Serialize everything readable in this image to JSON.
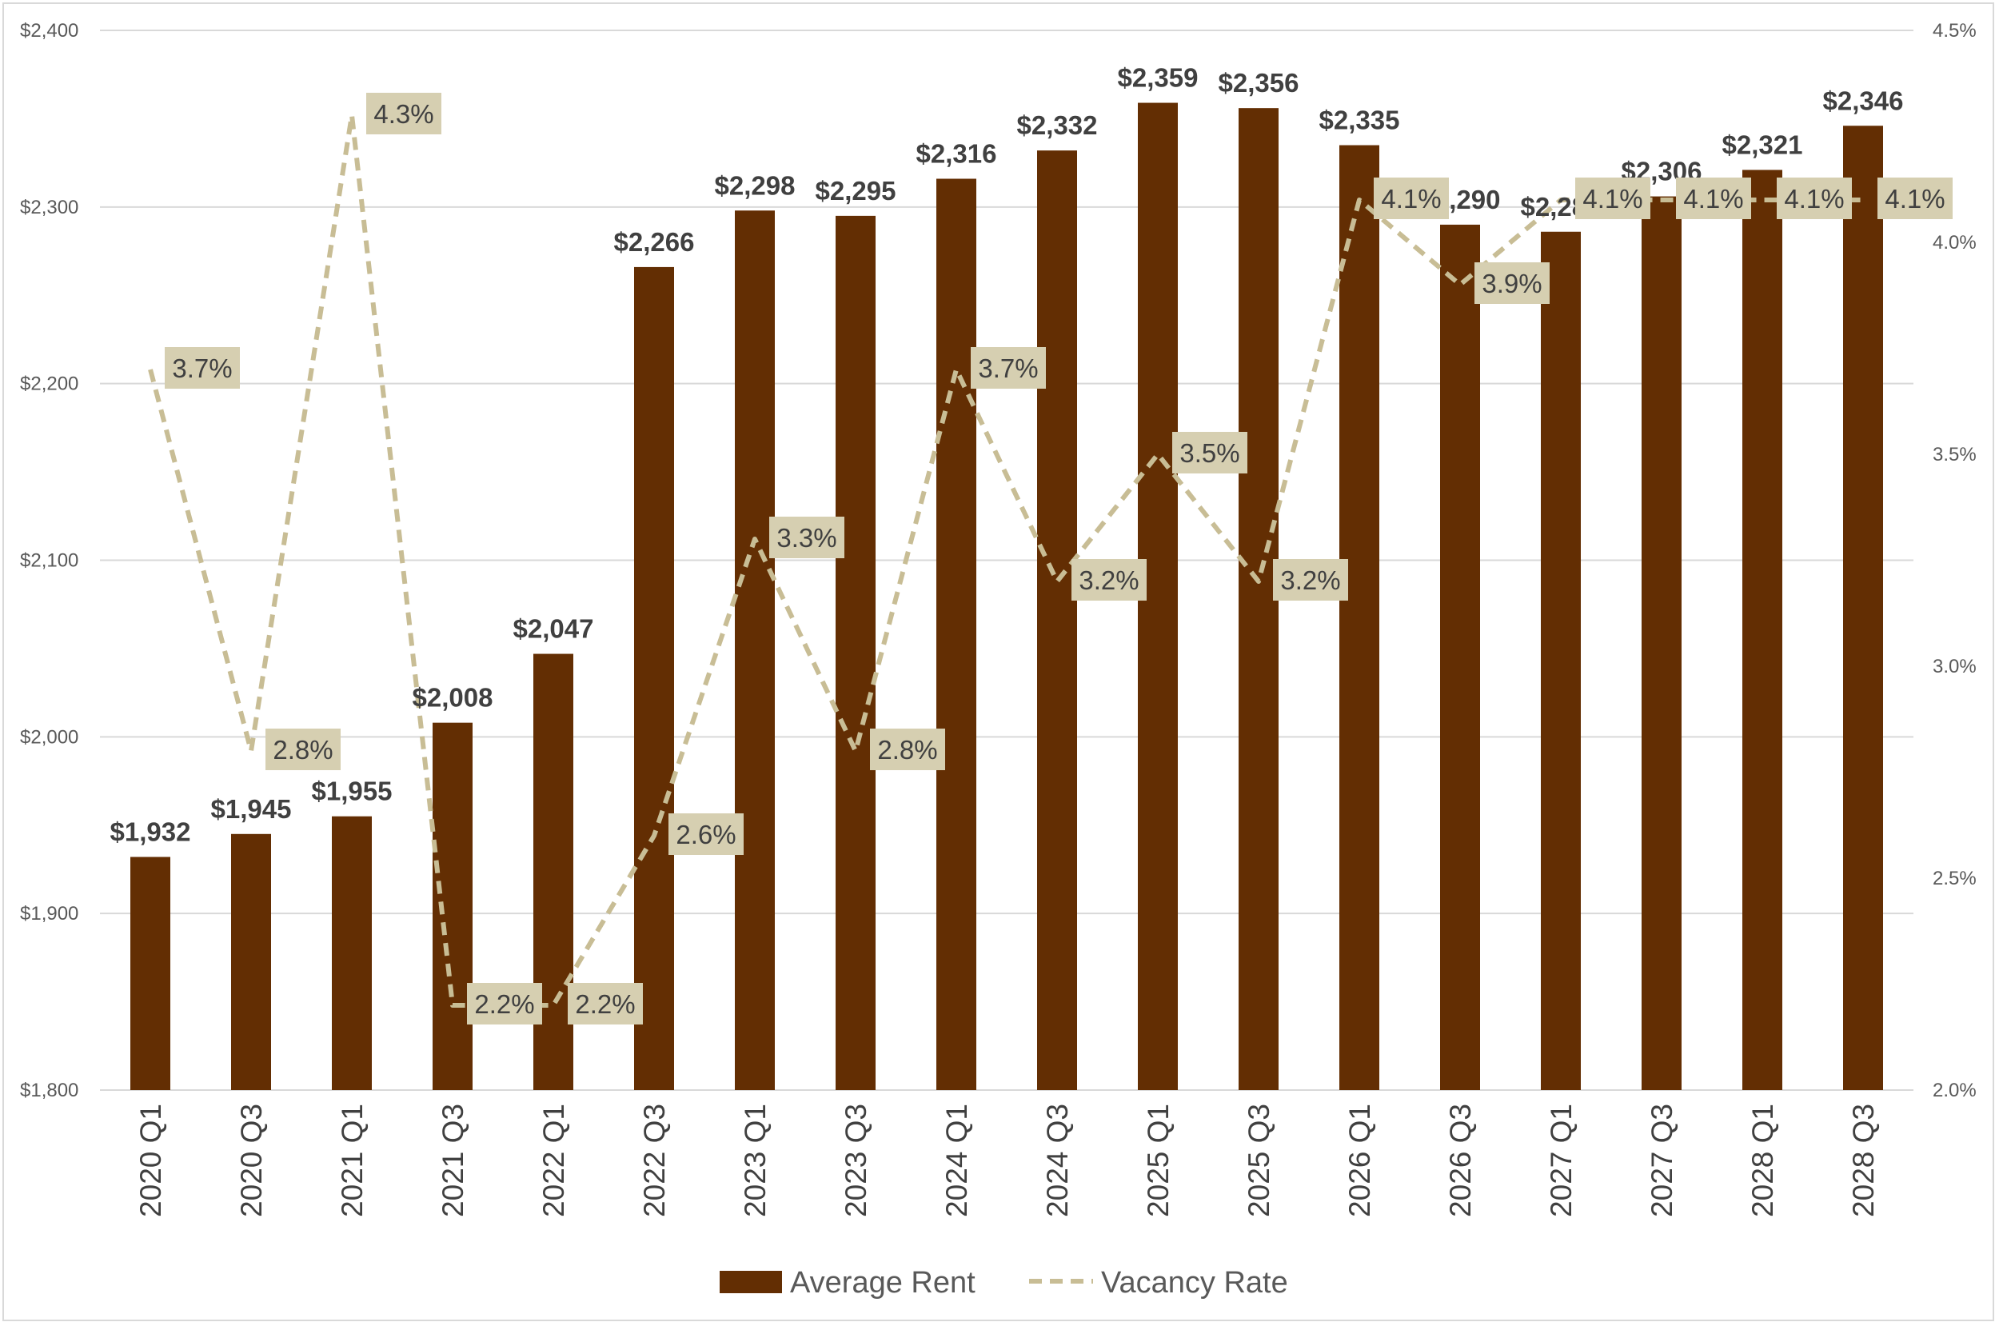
{
  "chart_data": {
    "type": "bar",
    "categories": [
      "2020 Q1",
      "2020 Q3",
      "2021 Q1",
      "2021 Q3",
      "2022 Q1",
      "2022 Q3",
      "2023 Q1",
      "2023 Q3",
      "2024 Q1",
      "2024 Q3",
      "2025 Q1",
      "2025 Q3",
      "2026 Q1",
      "2026 Q3",
      "2027 Q1",
      "2027 Q3",
      "2028 Q1",
      "2028 Q3"
    ],
    "series": [
      {
        "name": "Average Rent",
        "type": "bar",
        "axis": "left",
        "color": "#632e03",
        "values": [
          1932,
          1945,
          1955,
          2008,
          2047,
          2266,
          2298,
          2295,
          2316,
          2332,
          2359,
          2356,
          2335,
          2290,
          2286,
          2306,
          2321,
          2346
        ],
        "labels": [
          "$1,932",
          "$1,945",
          "$1,955",
          "$2,008",
          "$2,047",
          "$2,266",
          "$2,298",
          "$2,295",
          "$2,316",
          "$2,332",
          "$2,359",
          "$2,356",
          "$2,335",
          "$2,290",
          "$2,286",
          "$2,306",
          "$2,321",
          "$2,346"
        ]
      },
      {
        "name": "Vacancy Rate",
        "type": "line",
        "style": "dashed",
        "axis": "right",
        "color": "#c8bd95",
        "values": [
          3.7,
          2.8,
          4.3,
          2.2,
          2.2,
          2.6,
          3.3,
          2.8,
          3.7,
          3.2,
          3.5,
          3.2,
          4.1,
          3.9,
          4.1,
          4.1,
          4.1,
          4.1
        ],
        "labels": [
          "3.7%",
          "2.8%",
          "4.3%",
          "2.2%",
          "2.2%",
          "2.6%",
          "3.3%",
          "2.8%",
          "3.7%",
          "3.2%",
          "3.5%",
          "3.2%",
          "4.1%",
          "3.9%",
          "4.1%",
          "4.1%",
          "4.1%",
          "4.1%"
        ]
      }
    ],
    "y_left": {
      "ylim": [
        1800,
        2400
      ],
      "ticks": [
        1800,
        1900,
        2000,
        2100,
        2200,
        2300,
        2400
      ],
      "tick_labels": [
        "$1,800",
        "$1,900",
        "$2,000",
        "$2,100",
        "$2,200",
        "$2,300",
        "$2,400"
      ]
    },
    "y_right": {
      "ylim": [
        2.0,
        4.5
      ],
      "ticks": [
        2.0,
        2.5,
        3.0,
        3.5,
        4.0,
        4.5
      ],
      "tick_labels": [
        "2.0%",
        "2.5%",
        "3.0%",
        "3.5%",
        "4.0%",
        "4.5%"
      ]
    },
    "grid": true,
    "legend_position": "bottom",
    "title": "",
    "xlabel": "",
    "ylabel": "",
    "colors": {
      "gridline": "#d9d9d9",
      "label_box": "#d6cfb1",
      "label_text": "#404040"
    }
  }
}
